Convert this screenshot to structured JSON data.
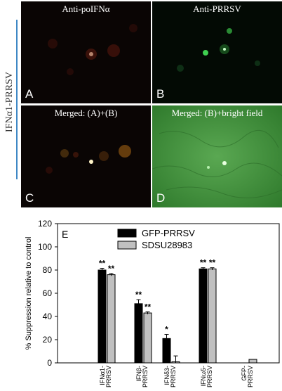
{
  "figure": {
    "side_label": "IFNα1-PRRSV",
    "panels": [
      {
        "letter": "A",
        "caption": "Anti-poIFNα",
        "color": "red"
      },
      {
        "letter": "B",
        "caption": "Anti-PRRSV",
        "color": "green"
      },
      {
        "letter": "C",
        "caption": "Merged: (A)+(B)",
        "color": "merged"
      },
      {
        "letter": "D",
        "caption": "Merged: (B)+bright field",
        "color": "bright"
      }
    ]
  },
  "chart_data": {
    "type": "bar",
    "panel_label": "E",
    "ylabel": "% Suppression relative to control",
    "xlabel": "",
    "ylim": [
      0,
      120
    ],
    "yticks": [
      0,
      20,
      40,
      60,
      80,
      100,
      120
    ],
    "categories": [
      "IFNα1-\nPRRSV",
      "IFNβ-\nPRRSV",
      "IFNδ3-\nPRRSV",
      "IFNω5-\nPRRSV",
      "GFP-\nPRRSV"
    ],
    "series": [
      {
        "name": "GFP-PRRSV",
        "color": "#000000",
        "values": [
          80,
          51,
          21,
          81,
          0
        ],
        "errors": [
          1.5,
          3.5,
          3.5,
          1,
          0
        ],
        "annotations": [
          "**",
          "**",
          "*",
          "**",
          ""
        ]
      },
      {
        "name": "SDSU28983",
        "color": "#c0c0c0",
        "values": [
          76,
          43,
          1,
          81,
          3
        ],
        "errors": [
          1,
          1,
          5,
          1,
          0
        ],
        "annotations": [
          "**",
          "**",
          "",
          "**",
          ""
        ]
      }
    ],
    "legend_position": "top-center",
    "grid": false
  }
}
